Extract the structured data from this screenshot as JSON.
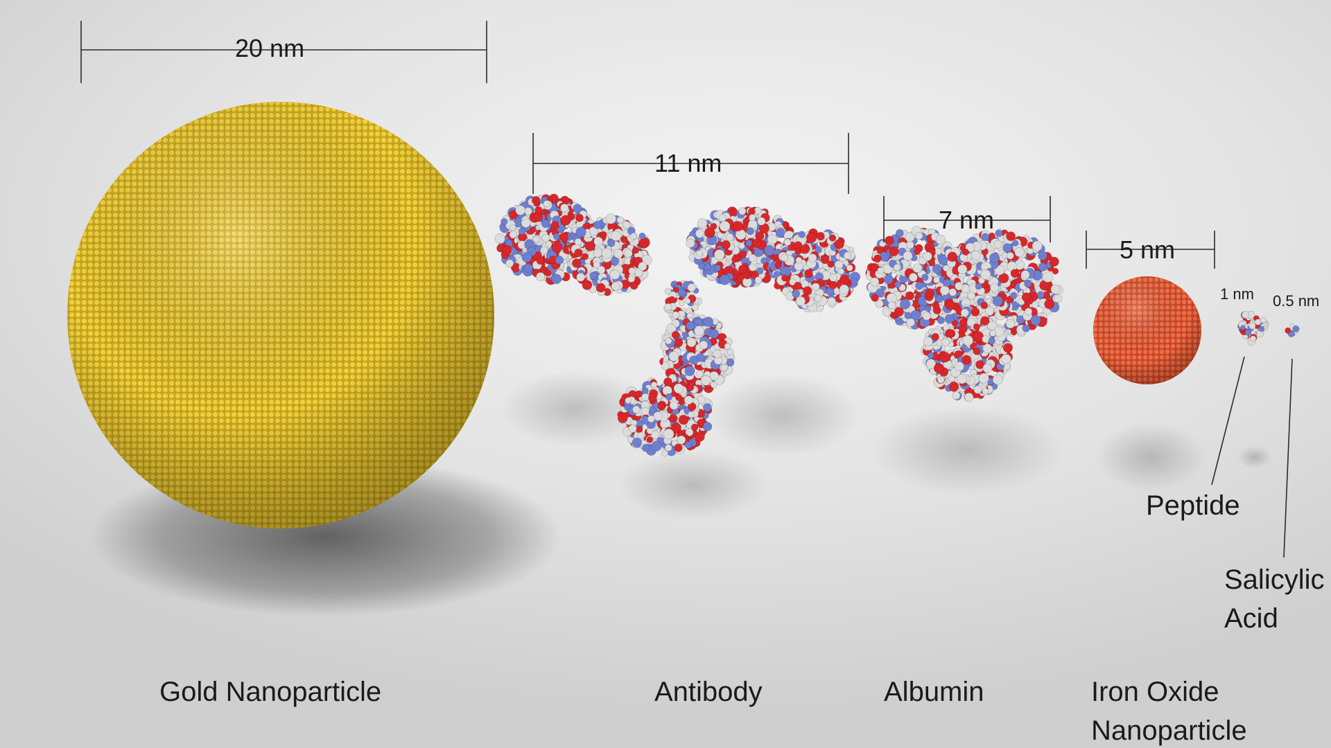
{
  "colors": {
    "gold": "#e6c42a",
    "iron_oxide": "#e05a34",
    "protein_white": "#dcdcdc",
    "protein_red": "#d8272a",
    "protein_blue": "#6f7fd0",
    "line": "#2a2a2a"
  },
  "measurements": {
    "gold": "20 nm",
    "antibody": "11 nm",
    "albumin": "7 nm",
    "iron_oxide": "5 nm",
    "peptide": "1 nm",
    "salicylic_acid": "0.5 nm"
  },
  "labels": {
    "gold": "Gold Nanoparticle",
    "antibody": "Antibody",
    "albumin": "Albumin",
    "iron_oxide_line1": "Iron Oxide",
    "iron_oxide_line2": "Nanoparticle",
    "peptide": "Peptide",
    "salicylic_line1": "Salicylic",
    "salicylic_line2": "Acid"
  }
}
